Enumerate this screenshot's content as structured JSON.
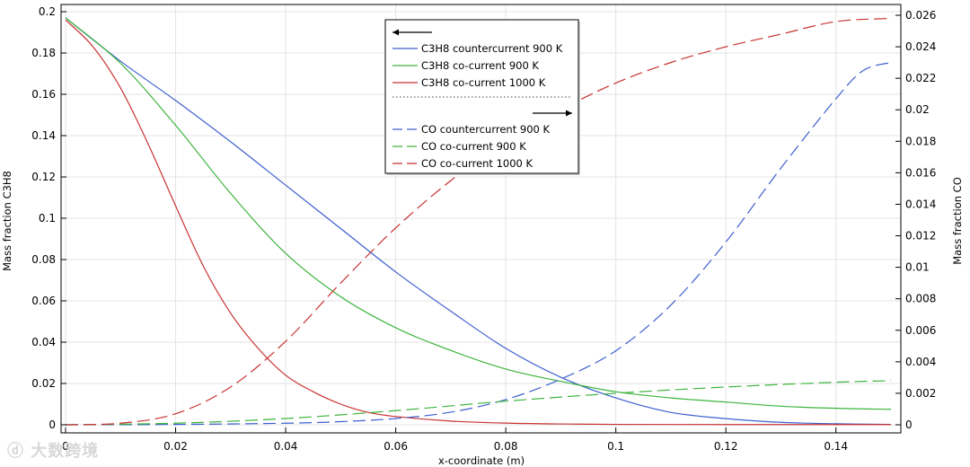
{
  "chart_data": {
    "type": "line",
    "xlabel": "x-coordinate (m)",
    "ylabel_left": "Mass fraction C3H8",
    "ylabel_right": "Mass fraction CO",
    "xlim": [
      0,
      0.15
    ],
    "ylim_left": [
      0,
      0.2
    ],
    "ylim_right": [
      0,
      0.026
    ],
    "x_ticks": [
      "0",
      "0.02",
      "0.04",
      "0.06",
      "0.08",
      "0.1",
      "0.12",
      "0.14"
    ],
    "y_left_ticks": [
      "0",
      "0.02",
      "0.04",
      "0.06",
      "0.08",
      "0.1",
      "0.12",
      "0.14",
      "0.16",
      "0.18",
      "0.2"
    ],
    "y_right_ticks": [
      "0",
      "0.002",
      "0.004",
      "0.006",
      "0.008",
      "0.01",
      "0.012",
      "0.014",
      "0.016",
      "0.018",
      "0.02",
      "0.022",
      "0.024",
      "0.026"
    ],
    "grid": true,
    "legend_position": "top-center",
    "series": [
      {
        "name": "C3H8 countercurrent 900 K",
        "axis": "left",
        "style": "solid",
        "color": "#3d5fcf",
        "x": [
          0,
          0.01,
          0.02,
          0.03,
          0.04,
          0.05,
          0.06,
          0.07,
          0.08,
          0.09,
          0.1,
          0.11,
          0.12,
          0.13,
          0.14,
          0.15
        ],
        "y": [
          0.197,
          0.176,
          0.157,
          0.137,
          0.116,
          0.095,
          0.074,
          0.055,
          0.037,
          0.023,
          0.013,
          0.006,
          0.003,
          0.0012,
          0.0005,
          0.0002
        ]
      },
      {
        "name": "C3H8 co-current 900 K",
        "axis": "left",
        "style": "solid",
        "color": "#3cb43c",
        "x": [
          0,
          0.01,
          0.02,
          0.03,
          0.04,
          0.05,
          0.06,
          0.07,
          0.08,
          0.09,
          0.1,
          0.11,
          0.12,
          0.13,
          0.14,
          0.15
        ],
        "y": [
          0.197,
          0.175,
          0.145,
          0.112,
          0.083,
          0.062,
          0.047,
          0.036,
          0.027,
          0.021,
          0.016,
          0.013,
          0.011,
          0.009,
          0.008,
          0.0075
        ]
      },
      {
        "name": "C3H8 co-current 1000 K",
        "axis": "left",
        "style": "solid",
        "color": "#c83232",
        "x": [
          0,
          0.005,
          0.01,
          0.015,
          0.02,
          0.025,
          0.03,
          0.035,
          0.04,
          0.045,
          0.05,
          0.055,
          0.06,
          0.07,
          0.08,
          0.09,
          0.1,
          0.12,
          0.15
        ],
        "y": [
          0.196,
          0.183,
          0.163,
          0.136,
          0.106,
          0.077,
          0.054,
          0.037,
          0.024,
          0.016,
          0.01,
          0.006,
          0.004,
          0.0018,
          0.0008,
          0.0004,
          0.0002,
          0.0001,
          0.0001
        ]
      },
      {
        "name": "CO countercurrent 900 K",
        "axis": "right",
        "style": "dashed",
        "color": "#3d5fcf",
        "x": [
          0,
          0.02,
          0.04,
          0.05,
          0.06,
          0.07,
          0.08,
          0.09,
          0.1,
          0.11,
          0.12,
          0.13,
          0.14,
          0.145,
          0.15
        ],
        "y": [
          0,
          2e-05,
          0.0001,
          0.0002,
          0.0004,
          0.0008,
          0.0016,
          0.0029,
          0.0047,
          0.0076,
          0.0116,
          0.0163,
          0.0207,
          0.0225,
          0.023
        ]
      },
      {
        "name": "CO co-current 900 K",
        "axis": "right",
        "style": "dashed",
        "color": "#3cb43c",
        "x": [
          0,
          0.02,
          0.04,
          0.06,
          0.08,
          0.1,
          0.12,
          0.14,
          0.15
        ],
        "y": [
          0,
          0.0001,
          0.0004,
          0.0009,
          0.0015,
          0.002,
          0.0024,
          0.0027,
          0.0028
        ]
      },
      {
        "name": "CO co-current 1000 K",
        "axis": "right",
        "style": "dashed",
        "color": "#c83232",
        "x": [
          0,
          0.01,
          0.02,
          0.03,
          0.04,
          0.05,
          0.06,
          0.07,
          0.08,
          0.09,
          0.1,
          0.11,
          0.12,
          0.13,
          0.14,
          0.15
        ],
        "y": [
          0,
          0.0001,
          0.0007,
          0.0024,
          0.0053,
          0.009,
          0.0125,
          0.0155,
          0.018,
          0.02,
          0.0217,
          0.023,
          0.024,
          0.0248,
          0.0256,
          0.0258
        ]
      }
    ],
    "legend_left_group": [
      "C3H8 countercurrent 900 K",
      "C3H8 co-current 900 K",
      "C3H8 co-current 1000 K"
    ],
    "legend_right_group": [
      "CO countercurrent 900 K",
      "CO co-current 900 K",
      "CO co-current 1000 K"
    ]
  },
  "watermark": "大数跨境"
}
